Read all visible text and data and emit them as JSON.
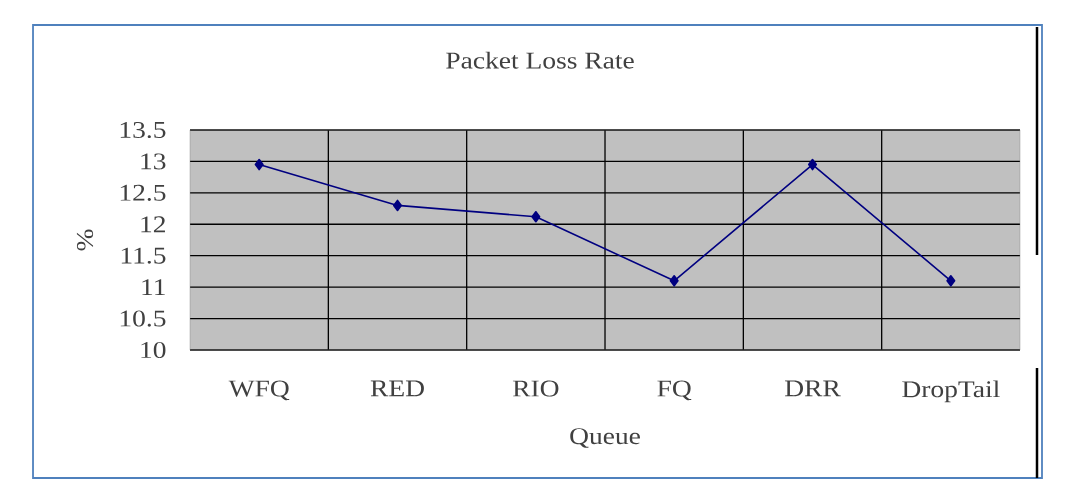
{
  "chart_data": {
    "type": "line",
    "title": "Packet Loss Rate",
    "xlabel": "Queue",
    "ylabel": "%",
    "categories": [
      "WFQ",
      "RED",
      "RIO",
      "FQ",
      "DRR",
      "DropTail"
    ],
    "series": [
      {
        "color": "#000080",
        "values": [
          12.95,
          12.3,
          12.12,
          11.1,
          12.95,
          11.1
        ]
      }
    ],
    "ylim": [
      10,
      13.5
    ],
    "yticks": [
      10,
      10.5,
      11,
      11.5,
      12,
      12.5,
      13,
      13.5
    ],
    "grid": true,
    "marker": "diamond",
    "line_style": "solid"
  }
}
